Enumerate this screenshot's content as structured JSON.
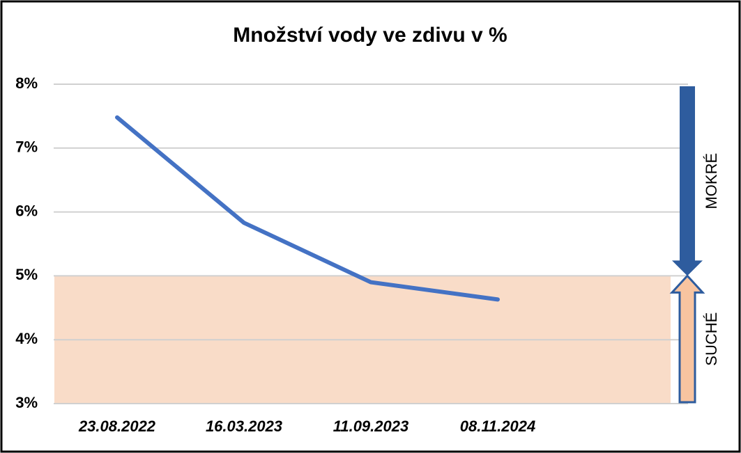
{
  "chart_data": {
    "type": "line",
    "title": "Množství vody ve zdivu v %",
    "categories": [
      "23.08.2022",
      "16.03.2023",
      "11.09.2023",
      "08.11.2024",
      null
    ],
    "series": [
      {
        "name": "Množství vody",
        "color": "#4472c4",
        "values": [
          7.48,
          5.83,
          4.9,
          4.63,
          null
        ]
      }
    ],
    "ylim": [
      3,
      8
    ],
    "yticks": [
      {
        "value": 3,
        "label": "3%"
      },
      {
        "value": 4,
        "label": "4%"
      },
      {
        "value": 5,
        "label": "5%"
      },
      {
        "value": 6,
        "label": "6%"
      },
      {
        "value": 7,
        "label": "7%"
      },
      {
        "value": 8,
        "label": "8%"
      }
    ],
    "grid": true,
    "band": {
      "from": 3,
      "to": 5,
      "color": "#f9dcc8"
    },
    "annotations": [
      {
        "text": "MOKRÉ",
        "color": "#2e5c9e"
      },
      {
        "text": "SUCHÉ",
        "color": "#f8c4a0"
      }
    ]
  }
}
